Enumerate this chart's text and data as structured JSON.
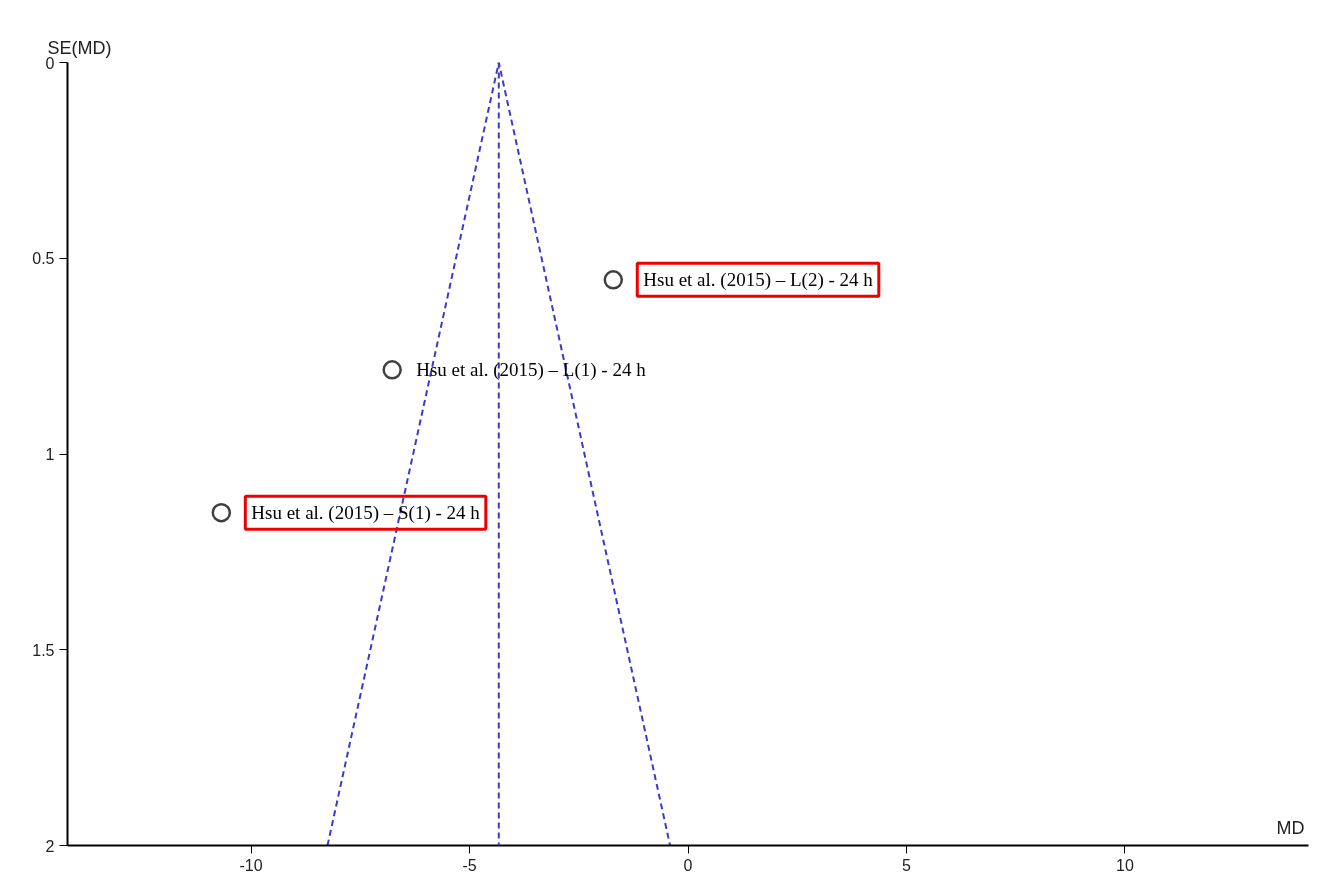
{
  "chart_data": {
    "type": "scatter",
    "xlabel": "MD",
    "ylabel": "SE(MD)",
    "xlim": [
      -14.2,
      14.2
    ],
    "ylim": [
      2,
      0
    ],
    "xticks": [
      -10,
      -5,
      0,
      5,
      10
    ],
    "yticks": [
      0,
      0.5,
      1,
      1.5,
      2
    ],
    "grid": false,
    "series": [
      {
        "color": "#404040",
        "marker": "circle",
        "x": [
          -1.71,
          -6.77,
          -10.68
        ],
        "values": [
          0.555,
          0.785,
          1.15
        ]
      },
      {
        "type": "line",
        "color": "#3a3acc",
        "line_style": "dashed",
        "x": [
          -8.25,
          -4.33,
          -0.41
        ],
        "values": [
          2,
          0,
          2
        ]
      }
    ],
    "ref_lines": [
      {
        "axis": "x",
        "value": -4.33,
        "color": "#3a3acc",
        "line_style": "dashed"
      }
    ],
    "annotations": [
      {
        "text": "Hsu et al. (2015) – L(2) - 24 h",
        "x": -1.71,
        "y": 0.555
      },
      {
        "text": "Hsu et al. (2015) – L(1) - 24 h",
        "x": -6.77,
        "y": 0.785
      },
      {
        "text": "Hsu et al. (2015) – S(1) - 24 h",
        "x": -10.68,
        "y": 1.15
      }
    ]
  }
}
